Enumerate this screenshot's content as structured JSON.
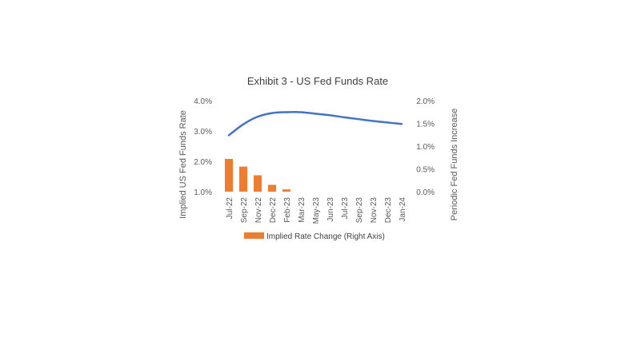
{
  "chart_data": {
    "type": "bar+line",
    "title": "Exhibit 3 - US Fed Funds Rate",
    "categories": [
      "Jul-22",
      "Sep-22",
      "Nov-22",
      "Dec-22",
      "Feb-23",
      "Mar-23",
      "May-23",
      "Jun-23",
      "Jul-23",
      "Sep-23",
      "Nov-23",
      "Dec-23",
      "Jan-24"
    ],
    "ylabel_left": "Implied US Fed Funds Rate",
    "ylabel_right": "Periodic Fed Funds Increase",
    "left_axis": {
      "ylim": [
        0.01,
        0.04
      ],
      "ticks": [
        "1.0%",
        "2.0%",
        "3.0%",
        "4.0%"
      ],
      "tick_values": [
        0.01,
        0.02,
        0.03,
        0.04
      ]
    },
    "right_axis": {
      "ylim": [
        0.0,
        0.02
      ],
      "ticks": [
        "0.0%",
        "0.5%",
        "1.0%",
        "1.5%",
        "2.0%"
      ],
      "tick_values": [
        0.0,
        0.005,
        0.01,
        0.015,
        0.02
      ]
    },
    "series": [
      {
        "name": "",
        "type": "line",
        "axis": "left",
        "color": "#4472C4",
        "values": [
          0.0286,
          0.0322,
          0.0347,
          0.0359,
          0.0362,
          0.0362,
          0.0357,
          0.0352,
          0.0345,
          0.0339,
          0.0333,
          0.0328,
          0.0323
        ]
      },
      {
        "name": "Implied Rate Change (Right Axis)",
        "type": "bar",
        "axis": "right",
        "color": "#ED7D31",
        "values": [
          0.0072,
          0.0055,
          0.0036,
          0.0015,
          0.0005,
          0,
          0,
          0,
          0,
          0,
          0,
          0,
          0
        ]
      }
    ],
    "legend": {
      "position": "bottom",
      "entries": [
        "Implied Rate Change (Right Axis)"
      ]
    },
    "grid": false
  }
}
